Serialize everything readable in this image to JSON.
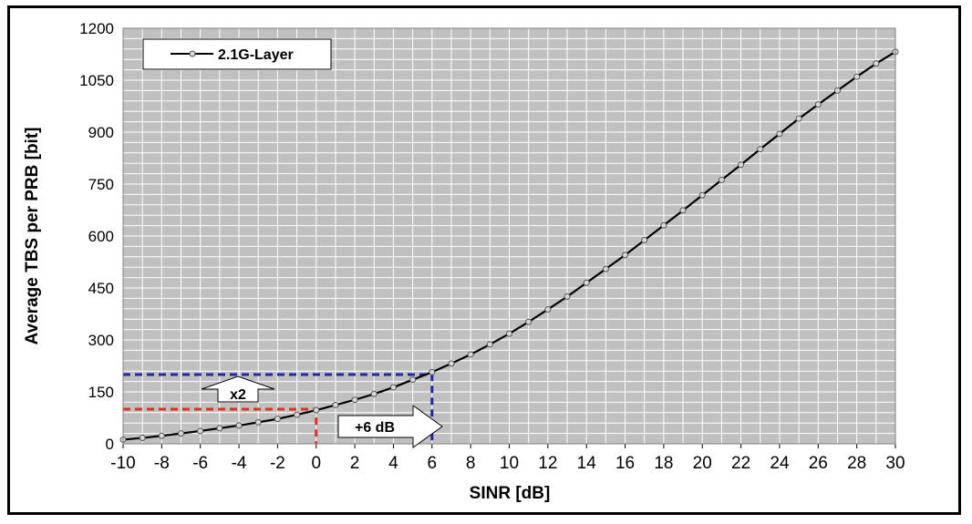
{
  "chart_data": {
    "type": "line",
    "title": "",
    "xlabel": "SINR [dB]",
    "ylabel": "Average TBS per PRB [bit]",
    "xlim": [
      -10,
      30
    ],
    "ylim": [
      0,
      1200
    ],
    "xticks": [
      -10,
      -8,
      -6,
      -4,
      -2,
      0,
      2,
      4,
      6,
      8,
      10,
      12,
      14,
      16,
      18,
      20,
      22,
      24,
      26,
      28,
      30
    ],
    "yticks": [
      0,
      150,
      300,
      450,
      600,
      750,
      900,
      1050,
      1200
    ],
    "grid": true,
    "legend": "top-left",
    "series": [
      {
        "name": "2.1G-Layer",
        "color": "#000000",
        "marker": "circle",
        "x": [
          -10,
          -9,
          -8,
          -7,
          -6,
          -5,
          -4,
          -3,
          -2,
          -1,
          0,
          1,
          2,
          3,
          4,
          5,
          6,
          7,
          8,
          9,
          10,
          11,
          12,
          13,
          14,
          15,
          16,
          17,
          18,
          19,
          20,
          21,
          22,
          23,
          24,
          25,
          26,
          27,
          28,
          29,
          30
        ],
        "y": [
          12,
          17,
          23,
          30,
          37,
          45,
          53,
          62,
          72,
          84,
          97,
          112,
          127,
          144,
          163,
          185,
          207,
          232,
          258,
          287,
          318,
          352,
          388,
          425,
          465,
          505,
          545,
          588,
          631,
          674,
          718,
          762,
          806,
          851,
          895,
          939,
          980,
          1020,
          1060,
          1098,
          1132
        ]
      }
    ],
    "annotations": {
      "ref_low": {
        "x": 0,
        "y": 100,
        "color": "#e0301e"
      },
      "ref_high": {
        "x": 6,
        "y": 200,
        "color": "#1f2a9c"
      },
      "arrow_up_label": "x2",
      "arrow_right_label": "+6 dB"
    },
    "colors": {
      "plot_bg": "#c0c0c0",
      "grid": "#ffffff",
      "line": "#000000"
    }
  }
}
